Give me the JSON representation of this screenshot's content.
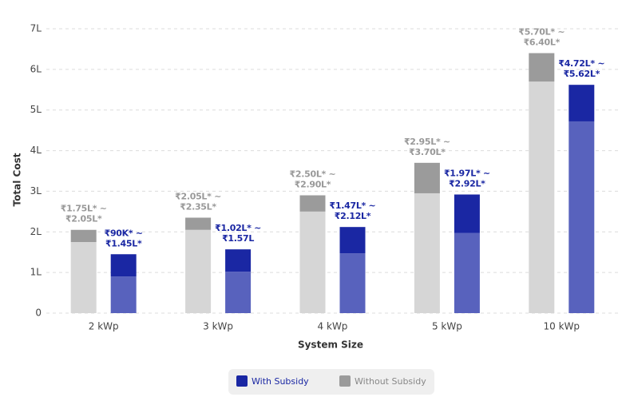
{
  "chart_data": {
    "type": "range-bar",
    "x_label": "System Size",
    "y_label": "Total Cost",
    "categories": [
      "2 kWp",
      "3 kWp",
      "4 kWp",
      "5 kWp",
      "10 kWp"
    ],
    "ylim": [
      0,
      7
    ],
    "yticks": [
      0,
      {
        "value": 1,
        "label": "1L"
      },
      {
        "value": 2,
        "label": "2L"
      },
      {
        "value": 3,
        "label": "3L"
      },
      {
        "value": 4,
        "label": "4L"
      },
      {
        "value": 5,
        "label": "5L"
      },
      {
        "value": 6,
        "label": "6L"
      },
      {
        "value": 7,
        "label": "7L"
      }
    ],
    "grid": true,
    "series": [
      {
        "name": "Without Subsidy",
        "color": "#9b9b9b",
        "range_color": "#d6d6d6",
        "label_color": "#999999",
        "low": [
          1.75,
          2.05,
          2.5,
          2.95,
          5.7
        ],
        "high": [
          2.05,
          2.35,
          2.9,
          3.7,
          6.4
        ],
        "low_labels": [
          "₹1.75L* ~",
          "₹2.05L* ~",
          "₹2.50L* ~",
          "₹2.95L* ~",
          "₹5.70L* ~"
        ],
        "high_labels": [
          "₹2.05L*",
          "₹2.35L*",
          "₹2.90L*",
          "₹3.70L*",
          "₹6.40L*"
        ]
      },
      {
        "name": "With Subsidy",
        "color": "#1a27a3",
        "range_color": "#5862bd",
        "label_color": "#1a27a3",
        "low": [
          0.9,
          1.02,
          1.47,
          1.97,
          4.72
        ],
        "high": [
          1.45,
          1.57,
          2.12,
          2.92,
          5.62
        ],
        "low_labels": [
          "₹90K* ~",
          "₹1.02L* ~",
          "₹1.47L* ~",
          "₹1.97L* ~",
          "₹4.72L* ~"
        ],
        "high_labels": [
          "₹1.45L*",
          "₹1.57L",
          "₹2.12L*",
          "₹2.92L*",
          "₹5.62L*"
        ]
      }
    ]
  }
}
